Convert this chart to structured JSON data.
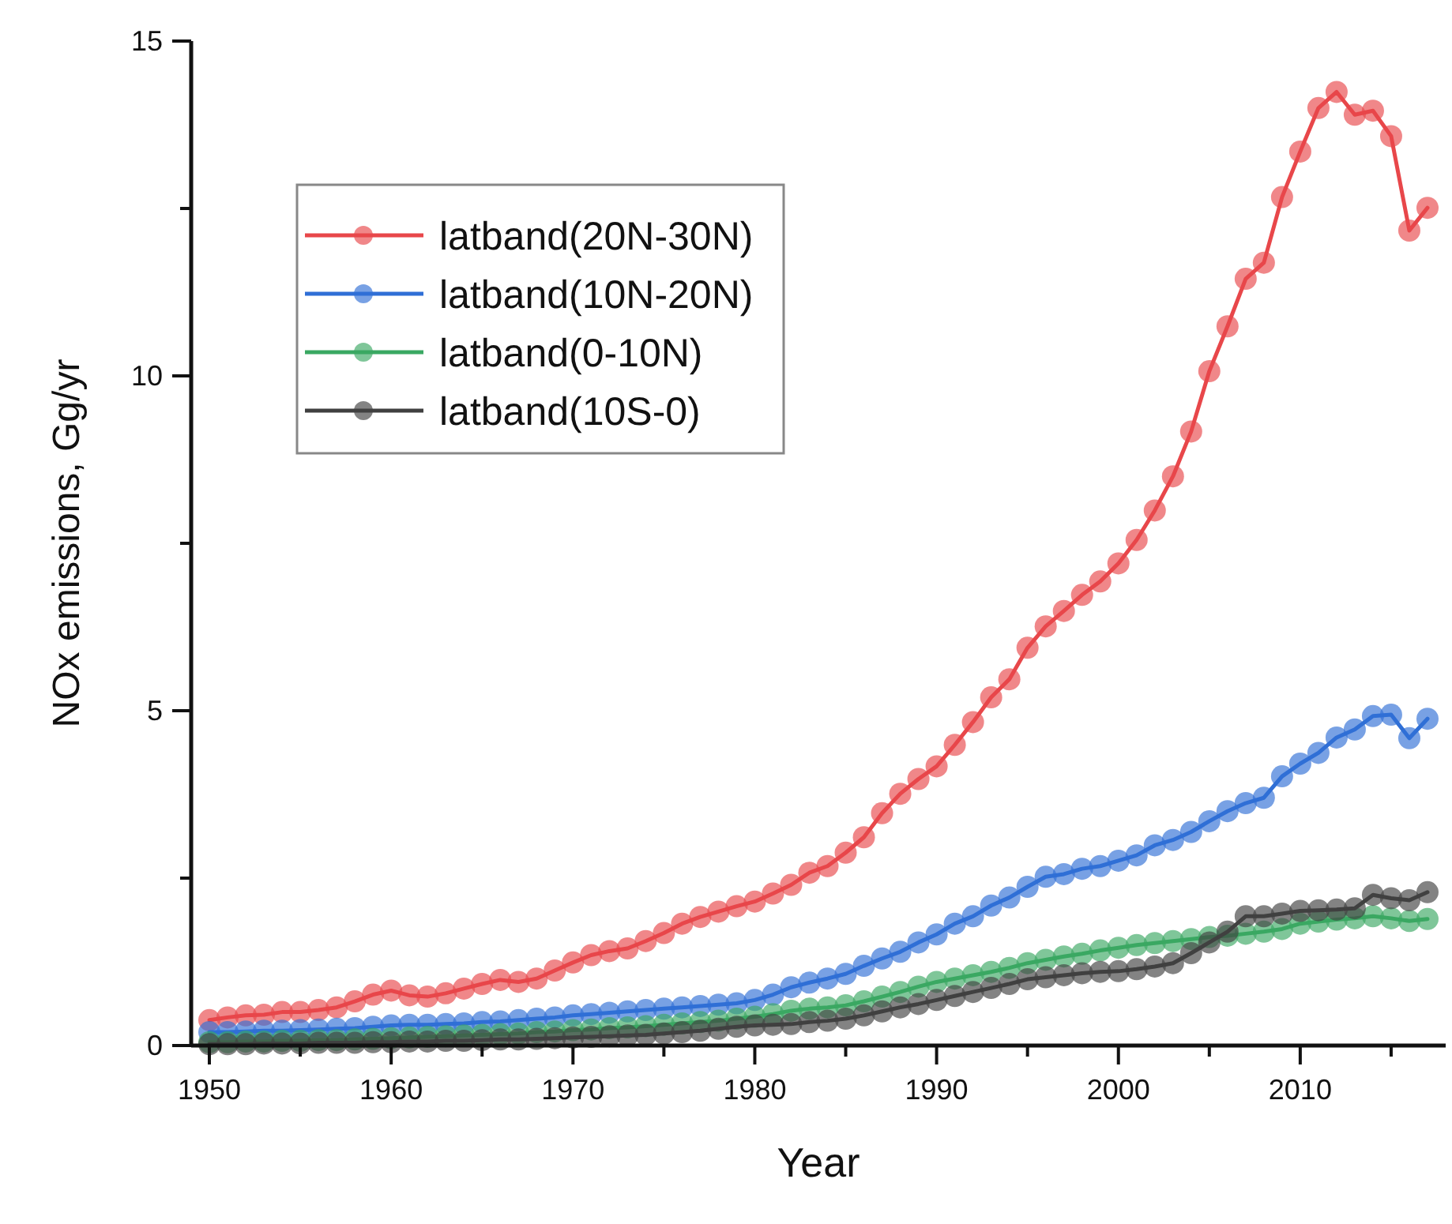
{
  "chart_data": {
    "type": "line",
    "xlabel": "Year",
    "ylabel": "NOx emissions, Gg/yr",
    "x": [
      1950,
      1951,
      1952,
      1953,
      1954,
      1955,
      1956,
      1957,
      1958,
      1959,
      1960,
      1961,
      1962,
      1963,
      1964,
      1965,
      1966,
      1967,
      1968,
      1969,
      1970,
      1971,
      1972,
      1973,
      1974,
      1975,
      1976,
      1977,
      1978,
      1979,
      1980,
      1981,
      1982,
      1983,
      1984,
      1985,
      1986,
      1987,
      1988,
      1989,
      1990,
      1991,
      1992,
      1993,
      1994,
      1995,
      1996,
      1997,
      1998,
      1999,
      2000,
      2001,
      2002,
      2003,
      2004,
      2005,
      2006,
      2007,
      2008,
      2009,
      2010,
      2011,
      2012,
      2013,
      2014,
      2015,
      2016,
      2017
    ],
    "series": [
      {
        "name": "latband(20N-30N)",
        "color": "#e8474a",
        "values": [
          0.38,
          0.42,
          0.45,
          0.46,
          0.5,
          0.5,
          0.53,
          0.57,
          0.66,
          0.76,
          0.82,
          0.75,
          0.73,
          0.78,
          0.85,
          0.92,
          0.98,
          0.95,
          1.0,
          1.12,
          1.24,
          1.35,
          1.41,
          1.45,
          1.56,
          1.68,
          1.82,
          1.92,
          2.0,
          2.08,
          2.15,
          2.27,
          2.4,
          2.58,
          2.68,
          2.88,
          3.11,
          3.47,
          3.76,
          3.98,
          4.17,
          4.49,
          4.83,
          5.2,
          5.47,
          5.94,
          6.26,
          6.49,
          6.73,
          6.93,
          7.2,
          7.55,
          7.99,
          8.5,
          9.17,
          10.07,
          10.74,
          11.45,
          11.69,
          12.67,
          13.35,
          14.0,
          14.24,
          13.9,
          13.96,
          13.58,
          12.17,
          12.51
        ]
      },
      {
        "name": "latband(10N-20N)",
        "color": "#2f6fd6",
        "values": [
          0.2,
          0.2,
          0.21,
          0.22,
          0.22,
          0.23,
          0.24,
          0.25,
          0.26,
          0.28,
          0.3,
          0.31,
          0.31,
          0.32,
          0.33,
          0.35,
          0.36,
          0.38,
          0.4,
          0.42,
          0.45,
          0.47,
          0.49,
          0.51,
          0.53,
          0.55,
          0.57,
          0.59,
          0.61,
          0.63,
          0.68,
          0.76,
          0.87,
          0.94,
          1.0,
          1.07,
          1.19,
          1.3,
          1.4,
          1.54,
          1.66,
          1.82,
          1.93,
          2.09,
          2.21,
          2.37,
          2.52,
          2.56,
          2.64,
          2.68,
          2.76,
          2.84,
          2.99,
          3.07,
          3.19,
          3.35,
          3.5,
          3.62,
          3.7,
          4.02,
          4.21,
          4.37,
          4.6,
          4.72,
          4.92,
          4.94,
          4.59,
          4.88
        ]
      },
      {
        "name": "latband(0-10N)",
        "color": "#3aa862",
        "values": [
          0.05,
          0.05,
          0.06,
          0.06,
          0.07,
          0.07,
          0.08,
          0.08,
          0.09,
          0.1,
          0.11,
          0.12,
          0.13,
          0.14,
          0.15,
          0.16,
          0.17,
          0.18,
          0.2,
          0.21,
          0.23,
          0.24,
          0.26,
          0.27,
          0.29,
          0.31,
          0.33,
          0.35,
          0.37,
          0.4,
          0.43,
          0.47,
          0.52,
          0.55,
          0.57,
          0.6,
          0.66,
          0.73,
          0.8,
          0.88,
          0.95,
          1.0,
          1.05,
          1.1,
          1.16,
          1.23,
          1.28,
          1.33,
          1.37,
          1.42,
          1.46,
          1.5,
          1.53,
          1.56,
          1.59,
          1.62,
          1.64,
          1.67,
          1.7,
          1.74,
          1.82,
          1.85,
          1.88,
          1.9,
          1.93,
          1.9,
          1.86,
          1.89
        ]
      },
      {
        "name": "latband(10S-0)",
        "color": "#404040",
        "values": [
          0.02,
          0.02,
          0.02,
          0.03,
          0.03,
          0.03,
          0.04,
          0.04,
          0.04,
          0.05,
          0.05,
          0.06,
          0.06,
          0.07,
          0.07,
          0.08,
          0.09,
          0.09,
          0.1,
          0.11,
          0.12,
          0.13,
          0.14,
          0.15,
          0.16,
          0.18,
          0.2,
          0.22,
          0.25,
          0.28,
          0.3,
          0.31,
          0.32,
          0.35,
          0.37,
          0.4,
          0.45,
          0.51,
          0.57,
          0.62,
          0.68,
          0.74,
          0.8,
          0.86,
          0.92,
          0.99,
          1.02,
          1.05,
          1.08,
          1.1,
          1.11,
          1.14,
          1.18,
          1.23,
          1.38,
          1.54,
          1.7,
          1.93,
          1.93,
          1.97,
          2.01,
          2.02,
          2.03,
          2.05,
          2.25,
          2.2,
          2.17,
          2.29
        ]
      }
    ],
    "xlim": [
      1949,
      2018
    ],
    "xticks": [
      1950,
      {
        "value": 1955,
        "label": null
      },
      1960,
      {
        "value": 1965,
        "label": null
      },
      1970,
      {
        "value": 1975,
        "label": null
      },
      1980,
      {
        "value": 1985,
        "label": null
      },
      1990,
      {
        "value": 1995,
        "label": null
      },
      2000,
      {
        "value": 2005,
        "label": null
      },
      2010,
      {
        "value": 2015,
        "label": null
      }
    ],
    "ylim": [
      0,
      15
    ],
    "yticks": [
      0,
      {
        "value": 2.5,
        "label": null
      },
      5,
      {
        "value": 7.5,
        "label": null
      },
      10,
      {
        "value": 12.5,
        "label": null
      },
      15
    ],
    "legend": "top left",
    "marker": "circle",
    "line_style": "solid",
    "grid": false
  }
}
